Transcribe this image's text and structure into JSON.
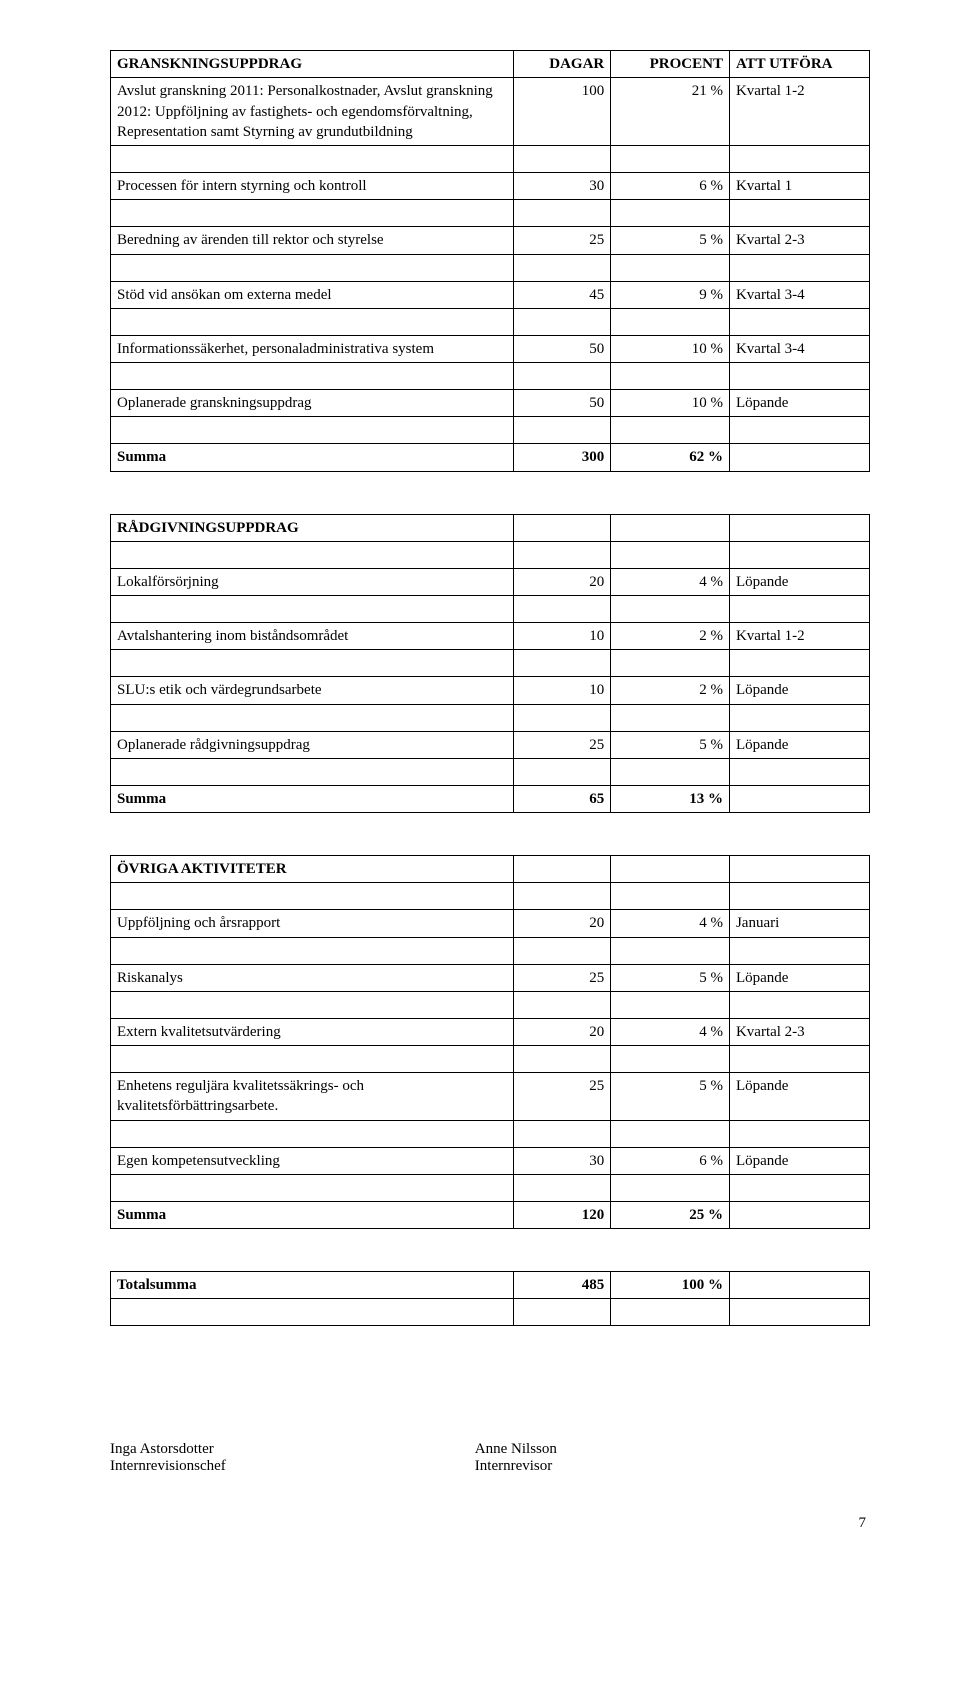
{
  "tables": [
    {
      "rows": [
        {
          "cells": [
            "GRANSKNINGSUPPDRAG",
            "DAGAR",
            "PROCENT",
            "ATT UTFÖRA"
          ],
          "bold": true
        },
        {
          "cells": [
            "Avslut granskning 2011: Personalkostnader, Avslut granskning 2012: Uppföljning av fastighets- och egendomsförvaltning, Representation samt Styrning av grundutbildning",
            "100",
            "21 %",
            "Kvartal 1-2"
          ]
        },
        {
          "spacer": true
        },
        {
          "cells": [
            "Processen för intern styrning och kontroll",
            "30",
            "6 %",
            "Kvartal 1"
          ]
        },
        {
          "spacer": true
        },
        {
          "cells": [
            "Beredning av ärenden till rektor och styrelse",
            "25",
            "5 %",
            "Kvartal 2-3"
          ]
        },
        {
          "spacer": true
        },
        {
          "cells": [
            "Stöd vid ansökan om externa medel",
            "45",
            "9 %",
            "Kvartal 3-4"
          ]
        },
        {
          "spacer": true
        },
        {
          "cells": [
            "Informationssäkerhet, personaladministrativa system",
            "50",
            "10 %",
            "Kvartal 3-4"
          ]
        },
        {
          "spacer": true
        },
        {
          "cells": [
            "Oplanerade granskningsuppdrag",
            "50",
            "10 %",
            "Löpande"
          ]
        },
        {
          "spacer": true
        },
        {
          "cells": [
            "Summa",
            "300",
            "62 %",
            ""
          ],
          "bold": true
        }
      ]
    },
    {
      "rows": [
        {
          "cells": [
            "RÅDGIVNINGSUPPDRAG",
            "",
            "",
            ""
          ],
          "bold": true
        },
        {
          "spacer": true
        },
        {
          "cells": [
            "Lokalförsörjning",
            "20",
            "4 %",
            "Löpande"
          ]
        },
        {
          "spacer": true
        },
        {
          "cells": [
            "Avtalshantering inom biståndsområdet",
            "10",
            "2 %",
            "Kvartal 1-2"
          ]
        },
        {
          "spacer": true
        },
        {
          "cells": [
            "SLU:s etik och värdegrundsarbete",
            "10",
            "2 %",
            "Löpande"
          ]
        },
        {
          "spacer": true
        },
        {
          "cells": [
            "Oplanerade rådgivningsuppdrag",
            "25",
            "5 %",
            "Löpande"
          ]
        },
        {
          "spacer": true
        },
        {
          "cells": [
            "Summa",
            "65",
            "13 %",
            ""
          ],
          "bold": true
        }
      ]
    },
    {
      "rows": [
        {
          "cells": [
            "ÖVRIGA AKTIVITETER",
            "",
            "",
            ""
          ],
          "bold": true
        },
        {
          "spacer": true
        },
        {
          "cells": [
            "Uppföljning och årsrapport",
            "20",
            "4 %",
            "Januari"
          ]
        },
        {
          "spacer": true
        },
        {
          "cells": [
            "Riskanalys",
            "25",
            "5 %",
            "Löpande"
          ]
        },
        {
          "spacer": true
        },
        {
          "cells": [
            "Extern kvalitetsutvärdering",
            "20",
            "4 %",
            "Kvartal 2-3"
          ]
        },
        {
          "spacer": true
        },
        {
          "cells": [
            "Enhetens reguljära kvalitetssäkrings- och kvalitetsförbättringsarbete.",
            "25",
            "5 %",
            "Löpande"
          ]
        },
        {
          "spacer": true
        },
        {
          "cells": [
            "Egen kompetensutveckling",
            "30",
            "6 %",
            "Löpande"
          ]
        },
        {
          "spacer": true
        },
        {
          "cells": [
            "Summa",
            "120",
            "25 %",
            ""
          ],
          "bold": true
        }
      ]
    },
    {
      "rows": [
        {
          "cells": [
            "Totalsumma",
            "485",
            "100 %",
            ""
          ],
          "bold": true
        },
        {
          "spacer": true
        }
      ]
    }
  ],
  "signatures": {
    "left": {
      "name": "Inga Astorsdotter",
      "title": "Internrevisionschef"
    },
    "right": {
      "name": "Anne Nilsson",
      "title": "Internrevisor"
    }
  },
  "page_number": "7"
}
